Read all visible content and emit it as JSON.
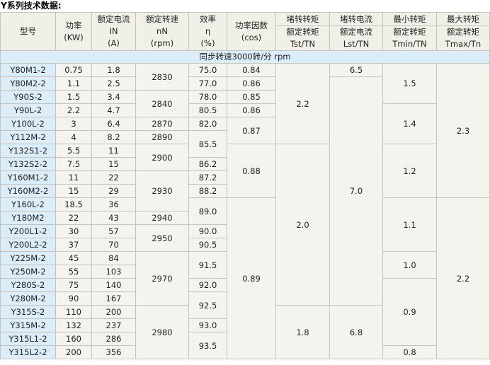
{
  "title": "Y系列技术数据:",
  "header": {
    "model": "型号",
    "power": [
      "功率",
      "(KW)"
    ],
    "current": [
      "额定电流",
      "IN",
      "(A)"
    ],
    "speed": [
      "额定转速",
      "nN",
      "(rpm)"
    ],
    "efficiency": [
      "效率",
      "η",
      "(%)"
    ],
    "pf": [
      "功率因数",
      "(cos)"
    ],
    "tst": [
      "堵转转矩",
      "额定转矩",
      "Tst/TN"
    ],
    "lst": [
      "堵转电流",
      "额定电流",
      "Lst/TN"
    ],
    "tmin": [
      "最小转矩",
      "额定转矩",
      "Tmin/TN"
    ],
    "tmax": [
      "最大转矩",
      "额定转矩",
      "Tmax/Tn"
    ]
  },
  "section": "同步转速3000转/分 rpm",
  "columns": {
    "model": [
      "Y80M1-2",
      "Y80M2-2",
      "Y90S-2",
      "Y90L-2",
      "Y100L-2",
      "Y112M-2",
      "Y132S1-2",
      "Y132S2-2",
      "Y160M1-2",
      "Y160M2-2",
      "Y160L-2",
      "Y180M2",
      "Y200L1-2",
      "Y200L2-2",
      "Y225M-2",
      "Y250M-2",
      "Y280S-2",
      "Y280M-2",
      "Y315S-2",
      "Y315M-2",
      "Y315L1-2",
      "Y315L2-2"
    ],
    "power": [
      "0.75",
      "1.1",
      "1.5",
      "2.2",
      "3",
      "4",
      "5.5",
      "7.5",
      "11",
      "15",
      "18.5",
      "22",
      "30",
      "37",
      "45",
      "55",
      "75",
      "90",
      "110",
      "132",
      "160",
      "200"
    ],
    "current": [
      "1.8",
      "2.5",
      "3.4",
      "4.7",
      "6.4",
      "8.2",
      "11",
      "15",
      "22",
      "29",
      "36",
      "43",
      "57",
      "70",
      "84",
      "103",
      "140",
      "167",
      "200",
      "237",
      "286",
      "356"
    ]
  },
  "merged_columns": {
    "speed": [
      [
        "2830",
        2
      ],
      [
        "2840",
        2
      ],
      [
        "2870",
        1
      ],
      [
        "2890",
        1
      ],
      [
        "2900",
        2
      ],
      [
        "2930",
        3
      ],
      [
        "2940",
        1
      ],
      [
        "2950",
        2
      ],
      [
        "2970",
        4
      ],
      [
        "2980",
        4
      ]
    ],
    "efficiency": [
      [
        "75.0",
        1
      ],
      [
        "77.0",
        1
      ],
      [
        "78.0",
        1
      ],
      [
        "80.5",
        1
      ],
      [
        "82.0",
        1
      ],
      [
        "85.5",
        2
      ],
      [
        "86.2",
        1
      ],
      [
        "87.2",
        1
      ],
      [
        "88.2",
        1
      ],
      [
        "89.0",
        2
      ],
      [
        "90.0",
        1
      ],
      [
        "90.5",
        1
      ],
      [
        "91.5",
        2
      ],
      [
        "92.0",
        1
      ],
      [
        "92.5",
        2
      ],
      [
        "93.0",
        1
      ],
      [
        "93.5",
        2
      ]
    ],
    "pf": [
      [
        "0.84",
        1
      ],
      [
        "0.86",
        1
      ],
      [
        "0.85",
        1
      ],
      [
        "0.86",
        1
      ],
      [
        "0.87",
        2
      ],
      [
        "0.88",
        4
      ],
      [
        "0.89",
        12
      ]
    ],
    "tst": [
      [
        "2.2",
        6
      ],
      [
        "2.0",
        12
      ],
      [
        "1.8",
        4
      ]
    ],
    "lst": [
      [
        "6.5",
        1
      ],
      [
        "7.0",
        17
      ],
      [
        "6.8",
        4
      ]
    ],
    "tmin": [
      [
        "1.5",
        3
      ],
      [
        "1.4",
        3
      ],
      [
        "1.2",
        4
      ],
      [
        "1.1",
        4
      ],
      [
        "1.0",
        2
      ],
      [
        "0.9",
        5
      ],
      [
        "0.8",
        1
      ]
    ],
    "tmax": [
      [
        "2.3",
        10
      ],
      [
        "2.2",
        12
      ]
    ]
  }
}
